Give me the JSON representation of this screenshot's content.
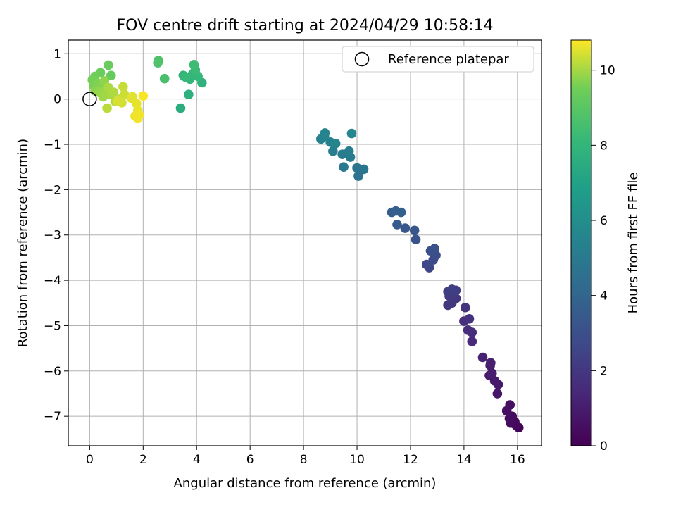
{
  "chart_data": {
    "type": "scatter",
    "title": "FOV centre drift starting at 2024/04/29 10:58:14",
    "xlabel": "Angular distance from reference (arcmin)",
    "ylabel": "Rotation from reference (arcmin)",
    "xlim": [
      -0.8,
      16.9
    ],
    "ylim": [
      -7.65,
      1.3
    ],
    "xticks": [
      0,
      2,
      4,
      6,
      8,
      10,
      12,
      14,
      16
    ],
    "yticks": [
      1,
      0,
      -1,
      -2,
      -3,
      -4,
      -5,
      -6,
      -7
    ],
    "grid": true,
    "legend": {
      "entries": [
        "Reference platepar"
      ],
      "placement": "top-right"
    },
    "reference_point": {
      "x": 0,
      "y": 0
    },
    "colorbar": {
      "label": "Hours from first FF file",
      "range": [
        0,
        10.8
      ],
      "ticks": [
        0,
        2,
        4,
        6,
        8,
        10
      ],
      "colormap": "viridis"
    },
    "points": [
      {
        "x": 16.05,
        "y": -7.25,
        "c": 0.1
      },
      {
        "x": 15.95,
        "y": -7.2,
        "c": 0.2
      },
      {
        "x": 15.9,
        "y": -7.12,
        "c": 0.3
      },
      {
        "x": 15.75,
        "y": -7.15,
        "c": 0.35
      },
      {
        "x": 15.8,
        "y": -7.0,
        "c": 0.4
      },
      {
        "x": 15.7,
        "y": -7.05,
        "c": 0.45
      },
      {
        "x": 15.6,
        "y": -6.88,
        "c": 0.5
      },
      {
        "x": 15.72,
        "y": -6.75,
        "c": 0.55
      },
      {
        "x": 15.25,
        "y": -6.5,
        "c": 0.8
      },
      {
        "x": 15.28,
        "y": -6.3,
        "c": 0.85
      },
      {
        "x": 15.15,
        "y": -6.22,
        "c": 0.9
      },
      {
        "x": 14.95,
        "y": -6.1,
        "c": 0.95
      },
      {
        "x": 15.05,
        "y": -6.05,
        "c": 1.0
      },
      {
        "x": 14.98,
        "y": -5.88,
        "c": 1.05
      },
      {
        "x": 15.0,
        "y": -5.82,
        "c": 1.1
      },
      {
        "x": 14.7,
        "y": -5.7,
        "c": 1.2
      },
      {
        "x": 14.3,
        "y": -5.35,
        "c": 1.5
      },
      {
        "x": 14.3,
        "y": -5.15,
        "c": 1.6
      },
      {
        "x": 14.15,
        "y": -5.1,
        "c": 1.65
      },
      {
        "x": 14.0,
        "y": -4.9,
        "c": 1.7
      },
      {
        "x": 14.2,
        "y": -4.85,
        "c": 1.75
      },
      {
        "x": 14.05,
        "y": -4.6,
        "c": 1.85
      },
      {
        "x": 13.7,
        "y": -4.4,
        "c": 1.95
      },
      {
        "x": 13.4,
        "y": -4.55,
        "c": 2.0
      },
      {
        "x": 13.55,
        "y": -4.5,
        "c": 2.05
      },
      {
        "x": 13.45,
        "y": -4.35,
        "c": 2.1
      },
      {
        "x": 13.6,
        "y": -4.3,
        "c": 2.15
      },
      {
        "x": 13.4,
        "y": -4.25,
        "c": 2.2
      },
      {
        "x": 13.7,
        "y": -4.22,
        "c": 2.25
      },
      {
        "x": 13.55,
        "y": -4.2,
        "c": 2.3
      },
      {
        "x": 12.7,
        "y": -3.72,
        "c": 2.6
      },
      {
        "x": 12.6,
        "y": -3.65,
        "c": 2.7
      },
      {
        "x": 12.85,
        "y": -3.55,
        "c": 2.8
      },
      {
        "x": 12.95,
        "y": -3.45,
        "c": 2.9
      },
      {
        "x": 12.75,
        "y": -3.35,
        "c": 3.0
      },
      {
        "x": 12.9,
        "y": -3.3,
        "c": 3.05
      },
      {
        "x": 12.2,
        "y": -3.1,
        "c": 3.2
      },
      {
        "x": 12.15,
        "y": -2.9,
        "c": 3.3
      },
      {
        "x": 11.8,
        "y": -2.85,
        "c": 3.4
      },
      {
        "x": 11.5,
        "y": -2.77,
        "c": 3.5
      },
      {
        "x": 11.3,
        "y": -2.5,
        "c": 3.6
      },
      {
        "x": 11.45,
        "y": -2.47,
        "c": 3.7
      },
      {
        "x": 11.65,
        "y": -2.5,
        "c": 3.75
      },
      {
        "x": 10.05,
        "y": -1.7,
        "c": 4.6
      },
      {
        "x": 10.0,
        "y": -1.52,
        "c": 4.7
      },
      {
        "x": 10.25,
        "y": -1.55,
        "c": 4.8
      },
      {
        "x": 9.5,
        "y": -1.5,
        "c": 4.9
      },
      {
        "x": 9.75,
        "y": -1.28,
        "c": 5.0
      },
      {
        "x": 9.45,
        "y": -1.22,
        "c": 5.1
      },
      {
        "x": 9.7,
        "y": -1.15,
        "c": 5.15
      },
      {
        "x": 9.1,
        "y": -1.15,
        "c": 5.2
      },
      {
        "x": 9.0,
        "y": -0.95,
        "c": 5.3
      },
      {
        "x": 8.65,
        "y": -0.88,
        "c": 5.4
      },
      {
        "x": 8.78,
        "y": -0.82,
        "c": 5.45
      },
      {
        "x": 8.8,
        "y": -0.75,
        "c": 5.5
      },
      {
        "x": 9.2,
        "y": -0.98,
        "c": 5.55
      },
      {
        "x": 9.8,
        "y": -0.76,
        "c": 5.6
      },
      {
        "x": 3.4,
        "y": -0.2,
        "c": 7.6
      },
      {
        "x": 3.7,
        "y": 0.1,
        "c": 7.7
      },
      {
        "x": 4.2,
        "y": 0.36,
        "c": 7.8
      },
      {
        "x": 3.5,
        "y": 0.52,
        "c": 7.9
      },
      {
        "x": 3.75,
        "y": 0.44,
        "c": 8.0
      },
      {
        "x": 3.85,
        "y": 0.55,
        "c": 8.05
      },
      {
        "x": 4.05,
        "y": 0.5,
        "c": 8.1
      },
      {
        "x": 3.6,
        "y": 0.48,
        "c": 8.15
      },
      {
        "x": 3.95,
        "y": 0.64,
        "c": 8.2
      },
      {
        "x": 3.9,
        "y": 0.76,
        "c": 8.3
      },
      {
        "x": 2.8,
        "y": 0.45,
        "c": 8.6
      },
      {
        "x": 2.55,
        "y": 0.8,
        "c": 8.7
      },
      {
        "x": 2.57,
        "y": 0.85,
        "c": 8.75
      },
      {
        "x": 0.8,
        "y": 0.52,
        "c": 9.3
      },
      {
        "x": 0.7,
        "y": 0.75,
        "c": 9.35
      },
      {
        "x": 0.4,
        "y": 0.58,
        "c": 9.4
      },
      {
        "x": 0.2,
        "y": 0.5,
        "c": 9.5
      },
      {
        "x": 0.1,
        "y": 0.42,
        "c": 9.55
      },
      {
        "x": 0.15,
        "y": 0.3,
        "c": 9.6
      },
      {
        "x": 0.3,
        "y": 0.35,
        "c": 9.65
      },
      {
        "x": 0.45,
        "y": 0.28,
        "c": 9.7
      },
      {
        "x": 0.2,
        "y": 0.18,
        "c": 9.75
      },
      {
        "x": 0.55,
        "y": 0.4,
        "c": 9.8
      },
      {
        "x": 0.35,
        "y": 0.15,
        "c": 9.85
      },
      {
        "x": 0.6,
        "y": 0.2,
        "c": 9.9
      },
      {
        "x": 0.5,
        "y": 0.05,
        "c": 9.95
      },
      {
        "x": 0.8,
        "y": 0.1,
        "c": 10.0
      },
      {
        "x": 0.7,
        "y": 0.25,
        "c": 10.05
      },
      {
        "x": 0.9,
        "y": 0.15,
        "c": 10.1
      },
      {
        "x": 0.95,
        "y": -0.05,
        "c": 10.15
      },
      {
        "x": 0.65,
        "y": -0.2,
        "c": 10.2
      },
      {
        "x": 1.15,
        "y": 0.0,
        "c": 10.25
      },
      {
        "x": 1.25,
        "y": 0.27,
        "c": 10.3
      },
      {
        "x": 1.3,
        "y": 0.1,
        "c": 10.35
      },
      {
        "x": 1.2,
        "y": -0.08,
        "c": 10.4
      },
      {
        "x": 1.05,
        "y": -0.05,
        "c": 10.45
      },
      {
        "x": 1.6,
        "y": 0.05,
        "c": 10.5
      },
      {
        "x": 1.55,
        "y": 0.02,
        "c": 10.55
      },
      {
        "x": 1.75,
        "y": -0.1,
        "c": 10.6
      },
      {
        "x": 1.8,
        "y": -0.25,
        "c": 10.62
      },
      {
        "x": 1.7,
        "y": -0.38,
        "c": 10.65
      },
      {
        "x": 1.8,
        "y": -0.42,
        "c": 10.68
      },
      {
        "x": 1.85,
        "y": -0.35,
        "c": 10.7
      },
      {
        "x": 2.0,
        "y": 0.07,
        "c": 10.75
      }
    ]
  }
}
